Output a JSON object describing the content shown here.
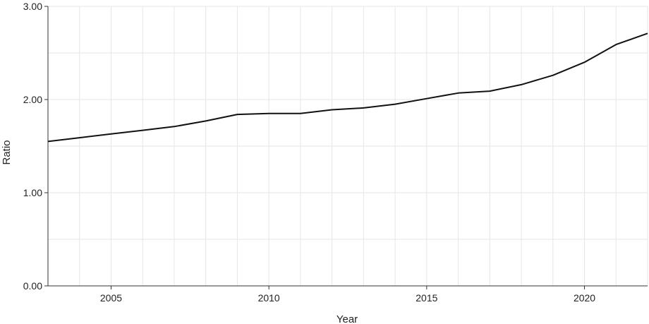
{
  "chart_data": {
    "type": "line",
    "xlabel": "Year",
    "ylabel": "Ratio",
    "xlim": [
      2003,
      2022
    ],
    "ylim": [
      0,
      3
    ],
    "x_ticks": [
      2005,
      2010,
      2015,
      2020
    ],
    "y_ticks": [
      0,
      1,
      2,
      3
    ],
    "y_tick_labels": [
      "0.00",
      "1.00",
      "2.00",
      "3.00"
    ],
    "grid": true,
    "legend": "none",
    "line_color": "#111111",
    "grid_color": "#e6e6e6",
    "series": [
      {
        "x": [
          2003,
          2004,
          2005,
          2006,
          2007,
          2008,
          2009,
          2010,
          2011,
          2012,
          2013,
          2014,
          2015,
          2016,
          2017,
          2018,
          2019,
          2020,
          2021,
          2022
        ],
        "values": [
          1.55,
          1.59,
          1.63,
          1.67,
          1.71,
          1.77,
          1.84,
          1.85,
          1.85,
          1.89,
          1.91,
          1.95,
          2.01,
          2.07,
          2.09,
          2.16,
          2.26,
          2.4,
          2.59,
          2.71
        ]
      }
    ]
  }
}
